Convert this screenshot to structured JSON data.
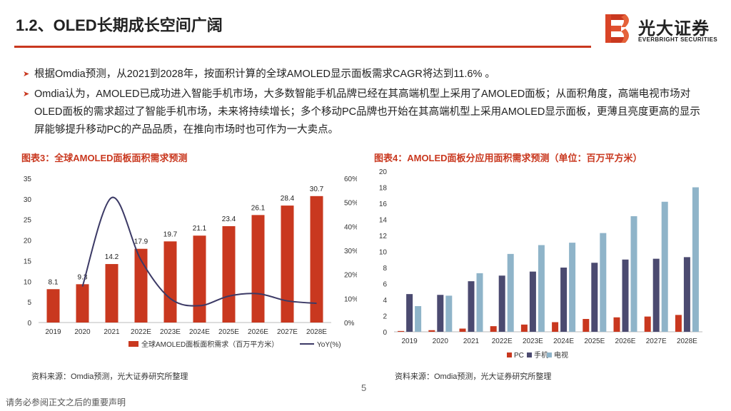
{
  "header": {
    "title": "1.2、OLED长期成长空间广阔"
  },
  "logo": {
    "name_cn": "光大证券",
    "name_en": "EVERBRIGHT SECURITIES"
  },
  "bullets": [
    {
      "text": "根据Omdia预测，从2021到2028年，按面积计算的全球AMOLED显示面板需求CAGR将达到11.6% 。"
    },
    {
      "text": "Omdia认为，AMOLED已成功进入智能手机市场，大多数智能手机品牌已经在其高端机型上采用了AMOLED面板；从面积角度，高端电视市场对OLED面板的需求超过了智能手机市场，未来将持续增长；多个移动PC品牌也开始在其高端机型上采用AMOLED显示面板，更薄且亮度更高的显示屏能够提升移动PC的产品品质，在推向市场时也可作为一大卖点。"
    }
  ],
  "chart3": {
    "title": "图表3：全球AMOLED面板面积需求预测",
    "source": "资料来源：Omdia预测，光大证券研究所整理"
  },
  "chart4": {
    "title": "图表4：AMOLED面板分应用面积需求预测（单位：百万平方米）",
    "source": "资料来源：Omdia预测，光大证券研究所整理"
  },
  "footer": {
    "page": "5",
    "disclaimer": "请务必参阅正文之后的重要声明"
  },
  "colors": {
    "accent": "#c9381f",
    "bar_red": "#c9381f",
    "line_navy": "#3c3a66",
    "phone": "#4b4a70",
    "tv": "#8fb4c9",
    "pc": "#c9381f"
  },
  "chart_data": [
    {
      "type": "bar",
      "categories": [
        "2019",
        "2020",
        "2021",
        "2022E",
        "2023E",
        "2024E",
        "2025E",
        "2026E",
        "2027E",
        "2028E"
      ],
      "series": [
        {
          "name": "全球AMOLED面板面积需求（百万平方米）",
          "axis": "left",
          "values": [
            8.1,
            9.3,
            14.2,
            17.9,
            19.7,
            21.1,
            23.4,
            26.1,
            28.4,
            30.7
          ]
        },
        {
          "name": "YoY(%)",
          "axis": "right",
          "type": "line",
          "values": [
            null,
            15,
            52,
            26,
            10,
            7,
            11,
            12,
            9,
            8
          ]
        }
      ],
      "data_labels": [
        "8.1",
        "9.3",
        "14.2",
        "17.9",
        "19.7",
        "21.1",
        "23.4",
        "26.1",
        "28.4",
        "30.7"
      ],
      "ylim": [
        0,
        35
      ],
      "yticks": [
        "0",
        "5",
        "10",
        "15",
        "20",
        "25",
        "30",
        "35"
      ],
      "y2lim": [
        0,
        60
      ],
      "y2ticks": [
        "0%",
        "10%",
        "20%",
        "30%",
        "40%",
        "50%",
        "60%"
      ],
      "legend": [
        "全球AMOLED面板面积需求（百万平方米）",
        "YoY(%)"
      ]
    },
    {
      "type": "bar",
      "categories": [
        "2019",
        "2020",
        "2021",
        "2022E",
        "2023E",
        "2024E",
        "2025E",
        "2026E",
        "2027E",
        "2028E"
      ],
      "series": [
        {
          "name": "PC",
          "values": [
            0.1,
            0.2,
            0.4,
            0.7,
            0.9,
            1.2,
            1.6,
            1.8,
            1.9,
            2.1
          ]
        },
        {
          "name": "手机",
          "values": [
            4.7,
            4.6,
            6.3,
            7.0,
            7.5,
            8.0,
            8.6,
            9.0,
            9.1,
            9.3
          ]
        },
        {
          "name": "电视",
          "values": [
            3.2,
            4.5,
            7.3,
            9.7,
            10.8,
            11.1,
            12.3,
            14.4,
            16.2,
            18.0
          ]
        }
      ],
      "ylim": [
        0,
        20
      ],
      "yticks": [
        "0",
        "2",
        "4",
        "6",
        "8",
        "10",
        "12",
        "14",
        "16",
        "18",
        "20"
      ],
      "legend": [
        "PC",
        "手机",
        "电视"
      ]
    }
  ]
}
